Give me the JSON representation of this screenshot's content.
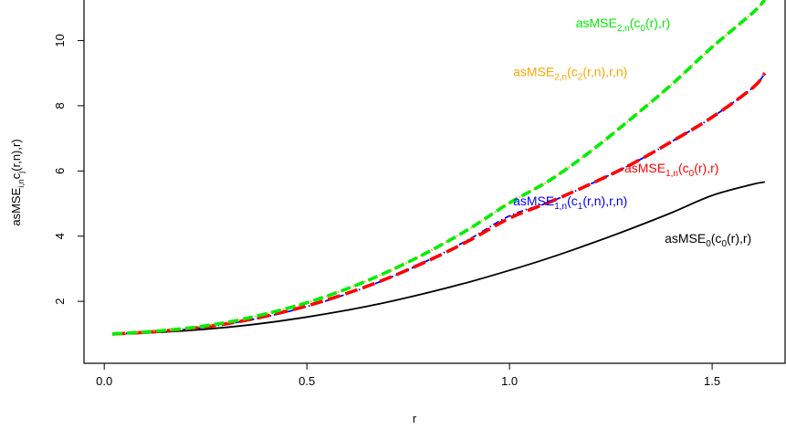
{
  "chart_data": {
    "type": "line",
    "xlabel": "r",
    "ylabel": {
      "parts": [
        {
          "t": "asMSE"
        },
        {
          "t": "i,n",
          "sub": true
        },
        {
          "t": "c"
        },
        {
          "t": "j",
          "sub": true
        },
        {
          "t": "(r,n),r)"
        }
      ]
    },
    "xlim": [
      -0.05,
      1.68
    ],
    "ylim": [
      0.1,
      11.3
    ],
    "xticks": [
      "0.0",
      "0.5",
      "1.0",
      "1.5"
    ],
    "xtick_values": [
      0,
      0.5,
      1.0,
      1.5
    ],
    "yticks": [
      "2",
      "4",
      "6",
      "8",
      "10"
    ],
    "ytick_values": [
      2,
      4,
      6,
      8,
      10
    ],
    "grid": false,
    "legend": "none",
    "series": [
      {
        "key": "mse0",
        "color": "#000000",
        "style": "solid",
        "x": [
          0.02,
          0.1,
          0.2,
          0.3,
          0.4,
          0.5,
          0.6,
          0.7,
          0.8,
          0.9,
          1.0,
          1.1,
          1.2,
          1.3,
          1.4,
          1.5,
          1.6,
          1.63
        ],
        "y": [
          1.0,
          1.03,
          1.1,
          1.2,
          1.34,
          1.52,
          1.73,
          1.98,
          2.27,
          2.59,
          2.95,
          3.34,
          3.77,
          4.23,
          4.72,
          5.25,
          5.59,
          5.66
        ]
      },
      {
        "key": "mse1_c1",
        "color": "#0000ff",
        "style": "dotdash",
        "x": [
          0.02,
          0.1,
          0.2,
          0.3,
          0.4,
          0.5,
          0.6,
          0.7,
          0.8,
          0.9,
          1.0,
          1.1,
          1.2,
          1.3,
          1.4,
          1.5,
          1.6,
          1.63
        ],
        "y": [
          1.0,
          1.05,
          1.14,
          1.3,
          1.53,
          1.84,
          2.23,
          2.7,
          3.26,
          3.9,
          4.62,
          5.05,
          5.6,
          6.2,
          6.9,
          7.65,
          8.55,
          9.0
        ]
      },
      {
        "key": "mse1_c0",
        "color": "#ff0000",
        "style": "longdash",
        "x": [
          0.02,
          0.1,
          0.2,
          0.3,
          0.4,
          0.5,
          0.6,
          0.7,
          0.8,
          0.9,
          1.0,
          1.1,
          1.2,
          1.3,
          1.4,
          1.5,
          1.6,
          1.63
        ],
        "y": [
          1.0,
          1.05,
          1.15,
          1.31,
          1.55,
          1.86,
          2.25,
          2.71,
          3.25,
          3.86,
          4.55,
          5.05,
          5.6,
          6.2,
          6.9,
          7.65,
          8.55,
          9.0
        ]
      },
      {
        "key": "mse2_c2",
        "color": "#ffa500",
        "style": "dotted",
        "x": [
          0.02,
          0.1,
          0.2,
          0.3,
          0.4,
          0.5,
          0.6,
          0.7,
          0.8,
          0.9,
          1.0,
          1.1,
          1.2,
          1.3,
          1.4,
          1.5,
          1.6,
          1.63
        ],
        "y": [
          1.0,
          1.06,
          1.17,
          1.35,
          1.62,
          1.96,
          2.39,
          2.91,
          3.52,
          4.22,
          5.02,
          5.72,
          6.6,
          7.6,
          8.65,
          9.8,
          10.85,
          11.25
        ]
      },
      {
        "key": "mse2_c0",
        "color": "#00ee00",
        "style": "dashed",
        "x": [
          0.02,
          0.1,
          0.2,
          0.3,
          0.4,
          0.5,
          0.6,
          0.7,
          0.8,
          0.9,
          1.0,
          1.1,
          1.2,
          1.3,
          1.4,
          1.5,
          1.6,
          1.63
        ],
        "y": [
          1.0,
          1.06,
          1.17,
          1.35,
          1.62,
          1.96,
          2.39,
          2.91,
          3.52,
          4.22,
          5.02,
          5.72,
          6.6,
          7.6,
          8.65,
          9.8,
          10.85,
          11.25
        ]
      }
    ],
    "annotations": [
      {
        "key": "lab-mse2-c0",
        "color": "#00ee00",
        "x": 1.28,
        "y": 10.4,
        "parts": [
          {
            "t": "asMSE"
          },
          {
            "t": "2,n",
            "sub": true
          },
          {
            "t": "(c"
          },
          {
            "t": "0",
            "sub": true
          },
          {
            "t": "(r),r)"
          }
        ]
      },
      {
        "key": "lab-mse2-c2",
        "color": "#ffa500",
        "x": 1.15,
        "y": 8.9,
        "parts": [
          {
            "t": "asMSE"
          },
          {
            "t": "2,n",
            "sub": true
          },
          {
            "t": "(c"
          },
          {
            "t": "2",
            "sub": true
          },
          {
            "t": "(r,n),r,n)"
          }
        ]
      },
      {
        "key": "lab-mse1-c0",
        "color": "#ff0000",
        "x": 1.4,
        "y": 5.95,
        "parts": [
          {
            "t": "asMSE"
          },
          {
            "t": "1,n",
            "sub": true
          },
          {
            "t": "(c"
          },
          {
            "t": "0",
            "sub": true
          },
          {
            "t": "(r),r)"
          }
        ]
      },
      {
        "key": "lab-mse1-c1",
        "color": "#0000ff",
        "x": 1.15,
        "y": 4.95,
        "parts": [
          {
            "t": "asMSE"
          },
          {
            "t": "1,n",
            "sub": true
          },
          {
            "t": "(c"
          },
          {
            "t": "1",
            "sub": true
          },
          {
            "t": "(r,n),r,n)"
          }
        ]
      },
      {
        "key": "lab-mse0",
        "color": "#000000",
        "x": 1.49,
        "y": 3.8,
        "parts": [
          {
            "t": "asMSE"
          },
          {
            "t": "0",
            "sub": true
          },
          {
            "t": "(c"
          },
          {
            "t": "0",
            "sub": true
          },
          {
            "t": "(r),r)"
          }
        ]
      }
    ]
  }
}
